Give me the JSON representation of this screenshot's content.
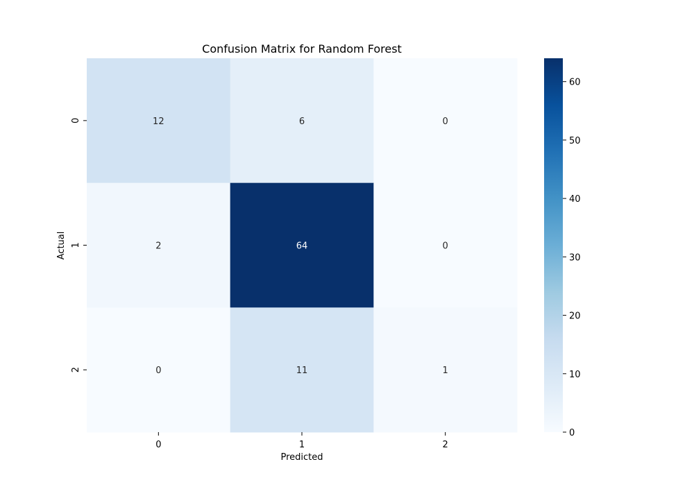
{
  "chart_data": {
    "type": "heatmap",
    "title": "Confusion Matrix for Random Forest",
    "xlabel": "Predicted",
    "ylabel": "Actual",
    "x_categories": [
      "0",
      "1",
      "2"
    ],
    "y_categories": [
      "0",
      "1",
      "2"
    ],
    "values": [
      [
        12,
        6,
        0
      ],
      [
        2,
        64,
        0
      ],
      [
        0,
        11,
        1
      ]
    ],
    "colormap": "Blues",
    "colormap_stops": [
      "#f7fbff",
      "#deebf7",
      "#c6dbef",
      "#9ecae1",
      "#6baed6",
      "#4292c6",
      "#2171b5",
      "#08519c",
      "#08306b"
    ],
    "vmin": 0,
    "vmax": 64,
    "colorbar_ticks": [
      0,
      10,
      20,
      30,
      40,
      50,
      60
    ],
    "grid": false
  }
}
